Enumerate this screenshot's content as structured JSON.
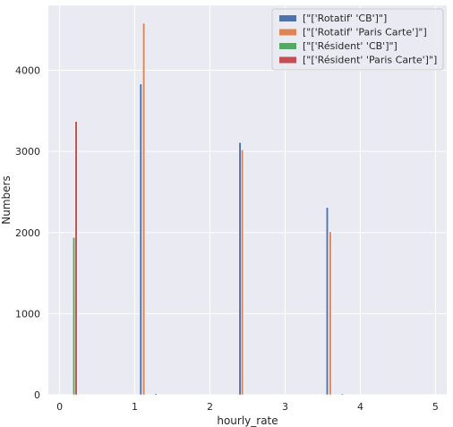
{
  "chart_data": {
    "type": "bar",
    "xlabel": "hourly_rate",
    "ylabel": "Numbers",
    "xlim": [
      -0.15,
      5.15
    ],
    "ylim": [
      0,
      4800
    ],
    "xticks": [
      0,
      1,
      2,
      3,
      4,
      5
    ],
    "yticks": [
      0,
      1000,
      2000,
      3000,
      4000
    ],
    "grid": true,
    "legend_position": "top-right",
    "bar_width": 0.03,
    "series": [
      {
        "name": "[\"['Rotatif' 'CB']\"]",
        "color": "#4c72b0",
        "points": [
          {
            "x": 1.08,
            "y": 3830
          },
          {
            "x": 1.28,
            "y": 15
          },
          {
            "x": 2.4,
            "y": 3110
          },
          {
            "x": 3.56,
            "y": 2310
          },
          {
            "x": 3.76,
            "y": 12
          }
        ]
      },
      {
        "name": "[\"['Rotatif' 'Paris Carte']\"]",
        "color": "#dd8452",
        "points": [
          {
            "x": 1.12,
            "y": 4580
          },
          {
            "x": 2.43,
            "y": 3020
          },
          {
            "x": 3.6,
            "y": 2010
          }
        ]
      },
      {
        "name": "[\"['Résident' 'CB']\"]",
        "color": "#55a868",
        "points": [
          {
            "x": 0.19,
            "y": 1940
          }
        ]
      },
      {
        "name": "[\"['Résident' 'Paris Carte']\"]",
        "color": "#c44e52",
        "points": [
          {
            "x": 0.22,
            "y": 3370
          }
        ]
      }
    ]
  }
}
